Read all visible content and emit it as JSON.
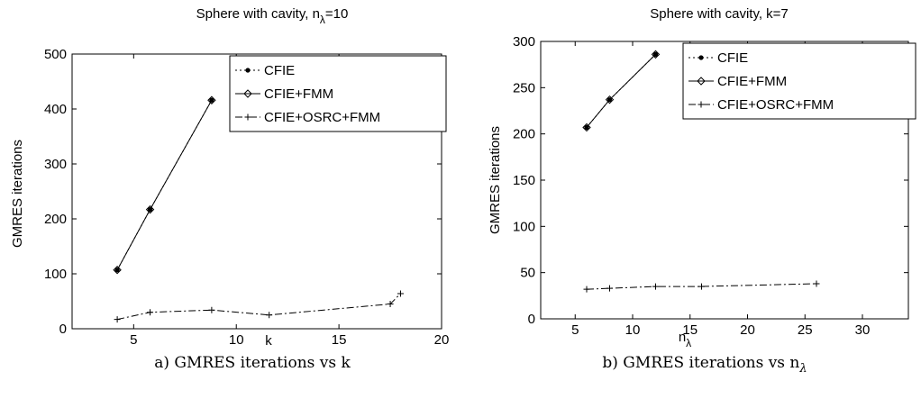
{
  "chart_data": [
    {
      "type": "line",
      "title": "Sphere with cavity, n",
      "title_sub": "λ",
      "title_suffix": "=10",
      "xlabel": "k",
      "ylabel": "GMRES iterations",
      "xlim": [
        2,
        20
      ],
      "ylim": [
        0,
        500
      ],
      "xticks": [
        5,
        10,
        15,
        20
      ],
      "yticks": [
        0,
        100,
        200,
        300,
        400,
        500
      ],
      "legend_position": "top-right",
      "caption": "a) GMRES iterations vs k",
      "series": [
        {
          "name": "CFIE",
          "style": "dotted-dot",
          "x": [
            4.2,
            5.8,
            8.8
          ],
          "y": [
            107,
            217,
            416
          ]
        },
        {
          "name": "CFIE+FMM",
          "style": "solid-diamond",
          "x": [
            4.2,
            5.8,
            8.8
          ],
          "y": [
            107,
            217,
            416
          ]
        },
        {
          "name": "CFIE+OSRC+FMM",
          "style": "dashdot-plus",
          "x": [
            4.2,
            5.8,
            8.8,
            11.6,
            17.5,
            18.0
          ],
          "y": [
            17,
            30,
            34,
            25,
            45,
            64
          ]
        }
      ]
    },
    {
      "type": "line",
      "title": "Sphere with cavity, k=7",
      "xlabel": "n",
      "xlabel_sub": "λ",
      "ylabel": "GMRES iterations",
      "xlim": [
        2,
        34
      ],
      "ylim": [
        0,
        300
      ],
      "xticks": [
        5,
        10,
        15,
        20,
        25,
        30
      ],
      "yticks": [
        0,
        50,
        100,
        150,
        200,
        250,
        300
      ],
      "legend_position": "top-right",
      "caption": "b) GMRES iterations vs n",
      "caption_sub": "λ",
      "series": [
        {
          "name": "CFIE",
          "style": "dotted-dot",
          "x": [
            6,
            8,
            12
          ],
          "y": [
            207,
            237,
            286
          ]
        },
        {
          "name": "CFIE+FMM",
          "style": "solid-diamond",
          "x": [
            6,
            8,
            12
          ],
          "y": [
            207,
            237,
            286
          ]
        },
        {
          "name": "CFIE+OSRC+FMM",
          "style": "dashdot-plus",
          "x": [
            6,
            8,
            12,
            16,
            26
          ],
          "y": [
            32,
            33,
            35,
            35,
            38
          ]
        }
      ]
    }
  ]
}
